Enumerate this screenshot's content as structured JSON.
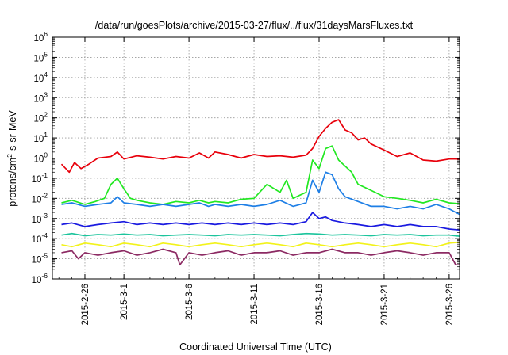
{
  "chart_data": {
    "type": "line",
    "title": "/data/run/goesPlots/archive/2015-03-27/flux/../flux/31daysMarsFluxes.txt",
    "xlabel": "Coordinated Universal Time (UTC)",
    "ylabel": "protons/cm²-s-sr-MeV",
    "ylabel_parts": {
      "pre": "protons/cm",
      "sup": "2",
      "post": "-s-sr-MeV"
    },
    "yscale": "log",
    "ylim_exponents": [
      -6,
      6
    ],
    "ytick_base": "10",
    "ytick_exponents": [
      "-6",
      "-5",
      "-4",
      "-3",
      "-2",
      "-1",
      "0",
      "1",
      "2",
      "3",
      "4",
      "5",
      "6"
    ],
    "xlim_days": [
      -2.5,
      28.8
    ],
    "xticks": [
      {
        "day": 0,
        "label": "2015-2-26"
      },
      {
        "day": 3,
        "label": "2015-3-1"
      },
      {
        "day": 8,
        "label": "2015-3-6"
      },
      {
        "day": 13,
        "label": "2015-3-11"
      },
      {
        "day": 18,
        "label": "2015-3-16"
      },
      {
        "day": 23,
        "label": "2015-3-21"
      },
      {
        "day": 28,
        "label": "2015-3-26"
      }
    ],
    "grid": true,
    "series": [
      {
        "color": "#e8000b",
        "x": [
          -1.8,
          -1.2,
          -0.8,
          -0.3,
          0.3,
          1,
          2,
          2.5,
          3,
          4,
          5,
          6,
          7,
          8,
          8.8,
          9.5,
          10,
          11,
          12,
          13,
          14,
          15,
          16,
          17,
          17.5,
          18,
          18.5,
          19,
          19.5,
          20,
          20.5,
          21,
          21.5,
          22,
          23,
          24,
          25,
          26,
          27,
          28,
          29.4
        ],
        "y": [
          0.5,
          0.2,
          0.6,
          0.3,
          0.5,
          1,
          1.2,
          2,
          0.9,
          1.3,
          1.1,
          0.9,
          1.2,
          1,
          1.8,
          1,
          2,
          1.5,
          1,
          1.5,
          1.2,
          1.3,
          1.1,
          1.4,
          3,
          12,
          30,
          60,
          80,
          25,
          18,
          8,
          10,
          5,
          2.5,
          1.2,
          1.8,
          0.8,
          0.7,
          0.9,
          0.9
        ]
      },
      {
        "color": "#22e822",
        "x": [
          -1.8,
          -1,
          0,
          0.8,
          1.5,
          2,
          2.5,
          3,
          3.5,
          4,
          5,
          6,
          7,
          8,
          8.8,
          9.5,
          10,
          11,
          12,
          13,
          14,
          15,
          15.5,
          16,
          17,
          17.5,
          18,
          18.5,
          19,
          19.5,
          20,
          20.5,
          21,
          22,
          23,
          24,
          25,
          26,
          27,
          28,
          29.4
        ],
        "y": [
          0.006,
          0.008,
          0.005,
          0.007,
          0.01,
          0.05,
          0.1,
          0.03,
          0.01,
          0.008,
          0.006,
          0.005,
          0.007,
          0.006,
          0.008,
          0.006,
          0.007,
          0.006,
          0.009,
          0.01,
          0.05,
          0.02,
          0.08,
          0.01,
          0.02,
          0.8,
          0.3,
          3,
          4,
          0.8,
          0.4,
          0.2,
          0.05,
          0.025,
          0.012,
          0.01,
          0.008,
          0.006,
          0.009,
          0.006,
          0.005
        ]
      },
      {
        "color": "#1e7fe6",
        "x": [
          -1.8,
          -1,
          0,
          1,
          2,
          2.5,
          3,
          4,
          5,
          6,
          7,
          8,
          8.8,
          9.5,
          10,
          11,
          12,
          13,
          14,
          15,
          16,
          17,
          17.5,
          18,
          18.5,
          19,
          19.5,
          20,
          21,
          22,
          23,
          24,
          25,
          26,
          27,
          28,
          29.4
        ],
        "y": [
          0.005,
          0.006,
          0.004,
          0.005,
          0.006,
          0.012,
          0.006,
          0.005,
          0.004,
          0.005,
          0.004,
          0.005,
          0.006,
          0.004,
          0.005,
          0.004,
          0.005,
          0.004,
          0.005,
          0.008,
          0.004,
          0.006,
          0.08,
          0.02,
          0.2,
          0.15,
          0.03,
          0.012,
          0.007,
          0.004,
          0.004,
          0.003,
          0.004,
          0.003,
          0.005,
          0.003,
          0.001
        ]
      },
      {
        "color": "#1a1ae0",
        "x": [
          -1.8,
          -1,
          0,
          1,
          2,
          3,
          4,
          5,
          6,
          7,
          8,
          9,
          10,
          11,
          12,
          13,
          14,
          15,
          16,
          17,
          17.5,
          18,
          18.5,
          19,
          20,
          21,
          22,
          23,
          24,
          25,
          26,
          27,
          28,
          29.4
        ],
        "y": [
          0.0005,
          0.0006,
          0.0004,
          0.0005,
          0.0006,
          0.0007,
          0.0005,
          0.0006,
          0.0005,
          0.0006,
          0.0005,
          0.0006,
          0.0005,
          0.0006,
          0.0005,
          0.0006,
          0.0005,
          0.0006,
          0.0005,
          0.0007,
          0.002,
          0.001,
          0.0012,
          0.0008,
          0.0006,
          0.0005,
          0.0004,
          0.0005,
          0.0004,
          0.0005,
          0.0004,
          0.0004,
          0.0003,
          0.00025
        ]
      },
      {
        "color": "#1cc49c",
        "x": [
          -1.8,
          -1,
          0,
          1,
          2,
          3,
          4,
          5,
          6,
          7,
          8,
          9,
          10,
          11,
          12,
          13,
          14,
          15,
          16,
          17,
          18,
          19,
          20,
          21,
          22,
          23,
          24,
          25,
          26,
          27,
          28,
          29.4
        ],
        "y": [
          0.00015,
          0.00018,
          0.00014,
          0.00016,
          0.00015,
          0.00017,
          0.00015,
          0.00016,
          0.00014,
          0.00015,
          0.00016,
          0.00015,
          0.00014,
          0.00016,
          0.00015,
          0.00016,
          0.00015,
          0.00014,
          0.00016,
          0.00018,
          0.00017,
          0.00015,
          0.00016,
          0.00015,
          0.00014,
          0.00016,
          0.00015,
          0.00016,
          0.00014,
          0.00015,
          0.00015,
          0.00012
        ]
      },
      {
        "color": "#f2f21a",
        "x": [
          -1.8,
          -1,
          0,
          1,
          2,
          3,
          4,
          5,
          6,
          7,
          8,
          9,
          10,
          11,
          12,
          13,
          14,
          15,
          16,
          17,
          18,
          19,
          20,
          21,
          22,
          23,
          24,
          25,
          26,
          27,
          28,
          29.4
        ],
        "y": [
          5e-05,
          4e-05,
          6e-05,
          5e-05,
          4e-05,
          6e-05,
          5e-05,
          4e-05,
          6e-05,
          5e-05,
          4e-05,
          5e-05,
          6e-05,
          5e-05,
          4e-05,
          5e-05,
          6e-05,
          5e-05,
          4e-05,
          6e-05,
          5e-05,
          4e-05,
          5e-05,
          6e-05,
          5e-05,
          4e-05,
          5e-05,
          6e-05,
          5e-05,
          4e-05,
          6e-05,
          7e-05
        ]
      },
      {
        "color": "#8c2a63",
        "x": [
          -1.8,
          -1,
          -0.5,
          0,
          1,
          2,
          3,
          4,
          5,
          6,
          7,
          7.3,
          8,
          9,
          10,
          11,
          12,
          13,
          14,
          15,
          16,
          17,
          18,
          19,
          20,
          21,
          22,
          23,
          24,
          25,
          26,
          27,
          28,
          28.5,
          29.4
        ],
        "y": [
          2e-05,
          2.5e-05,
          1e-05,
          2e-05,
          1.5e-05,
          2e-05,
          2.5e-05,
          1.5e-05,
          2e-05,
          3e-05,
          2e-05,
          5e-06,
          2e-05,
          1.5e-05,
          2e-05,
          2.5e-05,
          1.5e-05,
          2e-05,
          2e-05,
          2.5e-05,
          1.5e-05,
          2e-05,
          2e-05,
          3e-05,
          2e-05,
          2e-05,
          1.5e-05,
          2e-05,
          2.5e-05,
          2e-05,
          1.5e-05,
          2e-05,
          2e-05,
          5e-06,
          5e-06
        ]
      }
    ]
  }
}
